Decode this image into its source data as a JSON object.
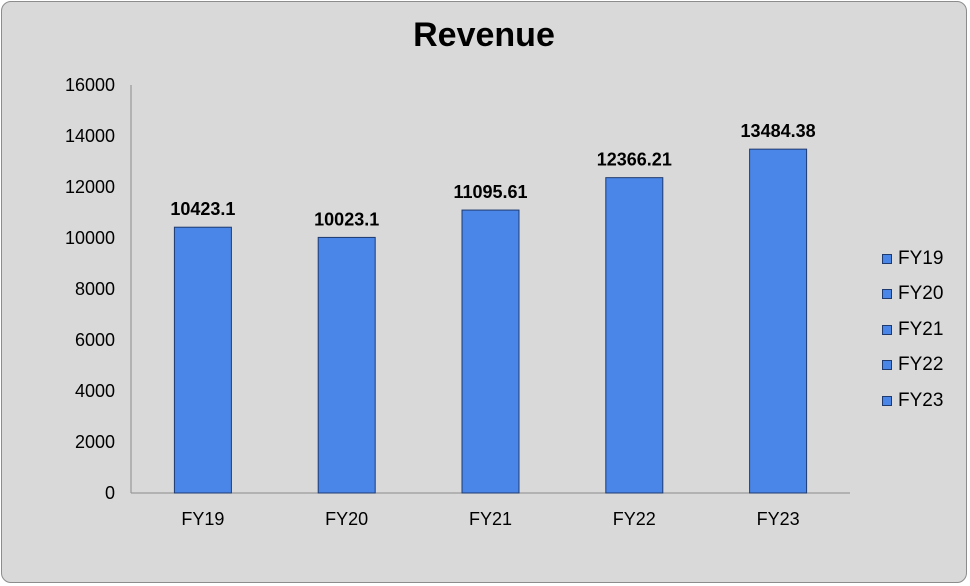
{
  "chart_data": {
    "type": "bar",
    "title": "Revenue",
    "categories": [
      "FY19",
      "FY20",
      "FY21",
      "FY22",
      "FY23"
    ],
    "values": [
      10423.1,
      10023.1,
      11095.61,
      12366.21,
      13484.38
    ],
    "value_labels": [
      "10423.1",
      "10023.1",
      "11095.61",
      "12366.21",
      "13484.38"
    ],
    "y_ticks": [
      "0",
      "2000",
      "4000",
      "6000",
      "8000",
      "10000",
      "12000",
      "14000",
      "16000"
    ],
    "ylim": [
      0,
      16000
    ],
    "xlabel": "",
    "ylabel": "",
    "grid": false,
    "legend_position": "right",
    "legend": [
      "FY19",
      "FY20",
      "FY21",
      "FY22",
      "FY23"
    ],
    "bar_color": "#4a86e8",
    "bar_edge_color": "#1f3a6e",
    "background_color": "#d9d9d9"
  }
}
